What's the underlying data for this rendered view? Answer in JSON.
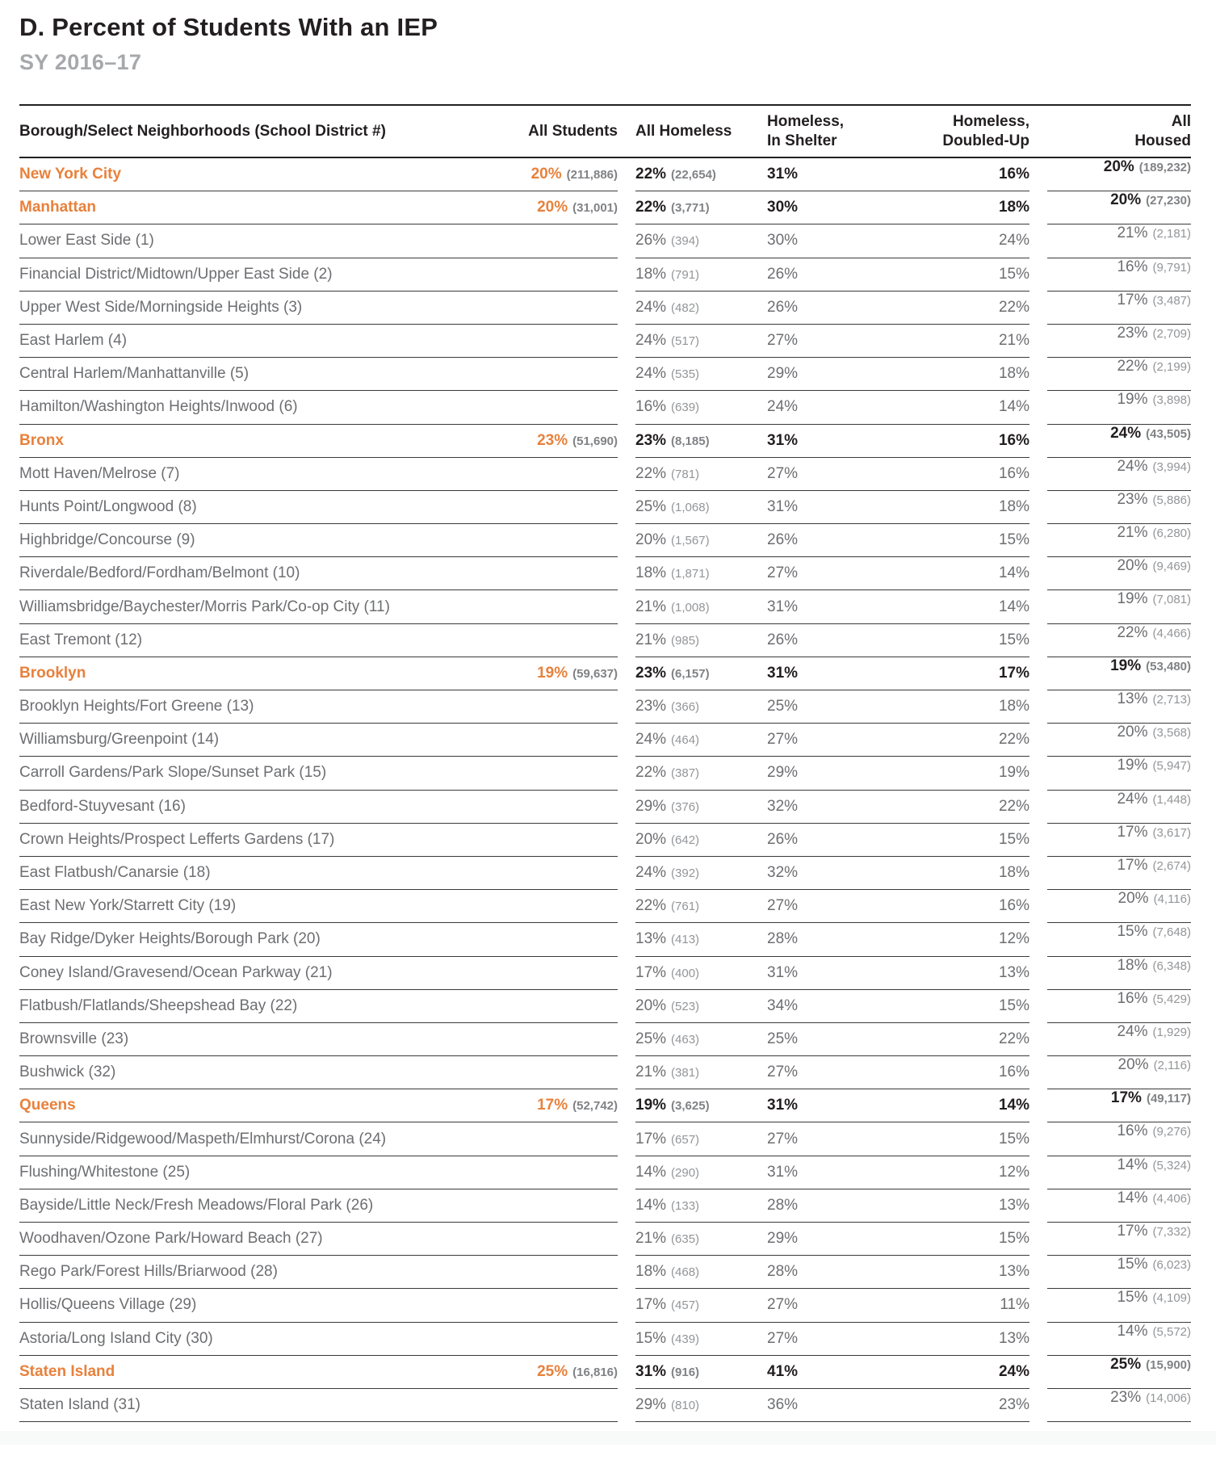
{
  "title": "D. Percent of Students With an IEP",
  "subtitle": "SY 2016–17",
  "accent_color": "#e8813c",
  "columns": {
    "name": "Borough/Select Neighborhoods (School District #)",
    "all_students": "All Students",
    "all_homeless": "All Homeless",
    "homeless_in_shelter": "Homeless,\nIn Shelter",
    "homeless_doubled_up": "Homeless,\nDoubled-Up",
    "all_housed": "All\nHoused"
  },
  "rows": [
    {
      "name": "New York City",
      "type": "city",
      "students_pct": "20%",
      "students_n": "(211,886)",
      "homeless_pct": "22%",
      "homeless_n": "(22,654)",
      "shelter_pct": "31%",
      "doubled_pct": "16%",
      "housed_pct": "20%",
      "housed_n": "(189,232)"
    },
    {
      "name": "Manhattan",
      "type": "borough",
      "students_pct": "20%",
      "students_n": "(31,001)",
      "homeless_pct": "22%",
      "homeless_n": "(3,771)",
      "shelter_pct": "30%",
      "doubled_pct": "18%",
      "housed_pct": "20%",
      "housed_n": "(27,230)"
    },
    {
      "name": "Lower East Side (1)",
      "type": "district",
      "students_pct": "",
      "students_n": "",
      "homeless_pct": "26%",
      "homeless_n": "(394)",
      "shelter_pct": "30%",
      "doubled_pct": "24%",
      "housed_pct": "21%",
      "housed_n": "(2,181)"
    },
    {
      "name": "Financial District/Midtown/Upper East Side (2)",
      "type": "district",
      "students_pct": "",
      "students_n": "",
      "homeless_pct": "18%",
      "homeless_n": "(791)",
      "shelter_pct": "26%",
      "doubled_pct": "15%",
      "housed_pct": "16%",
      "housed_n": "(9,791)"
    },
    {
      "name": "Upper West Side/Morningside Heights (3)",
      "type": "district",
      "students_pct": "",
      "students_n": "",
      "homeless_pct": "24%",
      "homeless_n": "(482)",
      "shelter_pct": "26%",
      "doubled_pct": "22%",
      "housed_pct": "17%",
      "housed_n": "(3,487)"
    },
    {
      "name": "East Harlem (4)",
      "type": "district",
      "students_pct": "",
      "students_n": "",
      "homeless_pct": "24%",
      "homeless_n": "(517)",
      "shelter_pct": "27%",
      "doubled_pct": "21%",
      "housed_pct": "23%",
      "housed_n": "(2,709)"
    },
    {
      "name": "Central Harlem/Manhattanville (5)",
      "type": "district",
      "students_pct": "",
      "students_n": "",
      "homeless_pct": "24%",
      "homeless_n": "(535)",
      "shelter_pct": "29%",
      "doubled_pct": "18%",
      "housed_pct": "22%",
      "housed_n": "(2,199)"
    },
    {
      "name": "Hamilton/Washington Heights/Inwood (6)",
      "type": "district",
      "students_pct": "",
      "students_n": "",
      "homeless_pct": "16%",
      "homeless_n": "(639)",
      "shelter_pct": "24%",
      "doubled_pct": "14%",
      "housed_pct": "19%",
      "housed_n": "(3,898)"
    },
    {
      "name": "Bronx",
      "type": "borough",
      "students_pct": "23%",
      "students_n": "(51,690)",
      "homeless_pct": "23%",
      "homeless_n": "(8,185)",
      "shelter_pct": "31%",
      "doubled_pct": "16%",
      "housed_pct": "24%",
      "housed_n": "(43,505)"
    },
    {
      "name": "Mott Haven/Melrose (7)",
      "type": "district",
      "students_pct": "",
      "students_n": "",
      "homeless_pct": "22%",
      "homeless_n": "(781)",
      "shelter_pct": "27%",
      "doubled_pct": "16%",
      "housed_pct": "24%",
      "housed_n": "(3,994)"
    },
    {
      "name": "Hunts Point/Longwood (8)",
      "type": "district",
      "students_pct": "",
      "students_n": "",
      "homeless_pct": "25%",
      "homeless_n": "(1,068)",
      "shelter_pct": "31%",
      "doubled_pct": "18%",
      "housed_pct": "23%",
      "housed_n": "(5,886)"
    },
    {
      "name": "Highbridge/Concourse (9)",
      "type": "district",
      "students_pct": "",
      "students_n": "",
      "homeless_pct": "20%",
      "homeless_n": "(1,567)",
      "shelter_pct": "26%",
      "doubled_pct": "15%",
      "housed_pct": "21%",
      "housed_n": "(6,280)"
    },
    {
      "name": "Riverdale/Bedford/Fordham/Belmont (10)",
      "type": "district",
      "students_pct": "",
      "students_n": "",
      "homeless_pct": "18%",
      "homeless_n": "(1,871)",
      "shelter_pct": "27%",
      "doubled_pct": "14%",
      "housed_pct": "20%",
      "housed_n": "(9,469)"
    },
    {
      "name": "Williamsbridge/Baychester/Morris Park/Co-op City (11)",
      "type": "district",
      "students_pct": "",
      "students_n": "",
      "homeless_pct": "21%",
      "homeless_n": "(1,008)",
      "shelter_pct": "31%",
      "doubled_pct": "14%",
      "housed_pct": "19%",
      "housed_n": "(7,081)"
    },
    {
      "name": "East Tremont (12)",
      "type": "district",
      "students_pct": "",
      "students_n": "",
      "homeless_pct": "21%",
      "homeless_n": "(985)",
      "shelter_pct": "26%",
      "doubled_pct": "15%",
      "housed_pct": "22%",
      "housed_n": "(4,466)"
    },
    {
      "name": "Brooklyn",
      "type": "borough",
      "students_pct": "19%",
      "students_n": "(59,637)",
      "homeless_pct": "23%",
      "homeless_n": "(6,157)",
      "shelter_pct": "31%",
      "doubled_pct": "17%",
      "housed_pct": "19%",
      "housed_n": "(53,480)"
    },
    {
      "name": "Brooklyn Heights/Fort Greene (13)",
      "type": "district",
      "students_pct": "",
      "students_n": "",
      "homeless_pct": "23%",
      "homeless_n": "(366)",
      "shelter_pct": "25%",
      "doubled_pct": "18%",
      "housed_pct": "13%",
      "housed_n": "(2,713)"
    },
    {
      "name": "Williamsburg/Greenpoint (14)",
      "type": "district",
      "students_pct": "",
      "students_n": "",
      "homeless_pct": "24%",
      "homeless_n": "(464)",
      "shelter_pct": "27%",
      "doubled_pct": "22%",
      "housed_pct": "20%",
      "housed_n": "(3,568)"
    },
    {
      "name": "Carroll Gardens/Park Slope/Sunset Park (15)",
      "type": "district",
      "students_pct": "",
      "students_n": "",
      "homeless_pct": "22%",
      "homeless_n": "(387)",
      "shelter_pct": "29%",
      "doubled_pct": "19%",
      "housed_pct": "19%",
      "housed_n": "(5,947)"
    },
    {
      "name": "Bedford-Stuyvesant (16)",
      "type": "district",
      "students_pct": "",
      "students_n": "",
      "homeless_pct": "29%",
      "homeless_n": "(376)",
      "shelter_pct": "32%",
      "doubled_pct": "22%",
      "housed_pct": "24%",
      "housed_n": "(1,448)"
    },
    {
      "name": "Crown Heights/Prospect Lefferts Gardens (17)",
      "type": "district",
      "students_pct": "",
      "students_n": "",
      "homeless_pct": "20%",
      "homeless_n": "(642)",
      "shelter_pct": "26%",
      "doubled_pct": "15%",
      "housed_pct": "17%",
      "housed_n": "(3,617)"
    },
    {
      "name": "East Flatbush/Canarsie (18)",
      "type": "district",
      "students_pct": "",
      "students_n": "",
      "homeless_pct": "24%",
      "homeless_n": "(392)",
      "shelter_pct": "32%",
      "doubled_pct": "18%",
      "housed_pct": "17%",
      "housed_n": "(2,674)"
    },
    {
      "name": "East New York/Starrett City (19)",
      "type": "district",
      "students_pct": "",
      "students_n": "",
      "homeless_pct": "22%",
      "homeless_n": "(761)",
      "shelter_pct": "27%",
      "doubled_pct": "16%",
      "housed_pct": "20%",
      "housed_n": "(4,116)"
    },
    {
      "name": "Bay Ridge/Dyker Heights/Borough Park (20)",
      "type": "district",
      "students_pct": "",
      "students_n": "",
      "homeless_pct": "13%",
      "homeless_n": "(413)",
      "shelter_pct": "28%",
      "doubled_pct": "12%",
      "housed_pct": "15%",
      "housed_n": "(7,648)"
    },
    {
      "name": "Coney Island/Gravesend/Ocean Parkway (21)",
      "type": "district",
      "students_pct": "",
      "students_n": "",
      "homeless_pct": "17%",
      "homeless_n": "(400)",
      "shelter_pct": "31%",
      "doubled_pct": "13%",
      "housed_pct": "18%",
      "housed_n": "(6,348)"
    },
    {
      "name": "Flatbush/Flatlands/Sheepshead Bay (22)",
      "type": "district",
      "students_pct": "",
      "students_n": "",
      "homeless_pct": "20%",
      "homeless_n": "(523)",
      "shelter_pct": "34%",
      "doubled_pct": "15%",
      "housed_pct": "16%",
      "housed_n": "(5,429)"
    },
    {
      "name": "Brownsville (23)",
      "type": "district",
      "students_pct": "",
      "students_n": "",
      "homeless_pct": "25%",
      "homeless_n": "(463)",
      "shelter_pct": "25%",
      "doubled_pct": "22%",
      "housed_pct": "24%",
      "housed_n": "(1,929)"
    },
    {
      "name": "Bushwick (32)",
      "type": "district",
      "students_pct": "",
      "students_n": "",
      "homeless_pct": "21%",
      "homeless_n": "(381)",
      "shelter_pct": "27%",
      "doubled_pct": "16%",
      "housed_pct": "20%",
      "housed_n": "(2,116)"
    },
    {
      "name": "Queens",
      "type": "borough",
      "students_pct": "17%",
      "students_n": "(52,742)",
      "homeless_pct": "19%",
      "homeless_n": "(3,625)",
      "shelter_pct": "31%",
      "doubled_pct": "14%",
      "housed_pct": "17%",
      "housed_n": "(49,117)"
    },
    {
      "name": "Sunnyside/Ridgewood/Maspeth/Elmhurst/Corona (24)",
      "type": "district",
      "students_pct": "",
      "students_n": "",
      "homeless_pct": "17%",
      "homeless_n": "(657)",
      "shelter_pct": "27%",
      "doubled_pct": "15%",
      "housed_pct": "16%",
      "housed_n": "(9,276)"
    },
    {
      "name": "Flushing/Whitestone (25)",
      "type": "district",
      "students_pct": "",
      "students_n": "",
      "homeless_pct": "14%",
      "homeless_n": "(290)",
      "shelter_pct": "31%",
      "doubled_pct": "12%",
      "housed_pct": "14%",
      "housed_n": "(5,324)"
    },
    {
      "name": "Bayside/Little Neck/Fresh Meadows/Floral Park (26)",
      "type": "district",
      "students_pct": "",
      "students_n": "",
      "homeless_pct": "14%",
      "homeless_n": "(133)",
      "shelter_pct": "28%",
      "doubled_pct": "13%",
      "housed_pct": "14%",
      "housed_n": "(4,406)"
    },
    {
      "name": "Woodhaven/Ozone Park/Howard Beach (27)",
      "type": "district",
      "students_pct": "",
      "students_n": "",
      "homeless_pct": "21%",
      "homeless_n": "(635)",
      "shelter_pct": "29%",
      "doubled_pct": "15%",
      "housed_pct": "17%",
      "housed_n": "(7,332)"
    },
    {
      "name": "Rego Park/Forest Hills/Briarwood (28)",
      "type": "district",
      "students_pct": "",
      "students_n": "",
      "homeless_pct": "18%",
      "homeless_n": "(468)",
      "shelter_pct": "28%",
      "doubled_pct": "13%",
      "housed_pct": "15%",
      "housed_n": "(6,023)"
    },
    {
      "name": "Hollis/Queens Village (29)",
      "type": "district",
      "students_pct": "",
      "students_n": "",
      "homeless_pct": "17%",
      "homeless_n": "(457)",
      "shelter_pct": "27%",
      "doubled_pct": "11%",
      "housed_pct": "15%",
      "housed_n": "(4,109)"
    },
    {
      "name": "Astoria/Long Island City (30)",
      "type": "district",
      "students_pct": "",
      "students_n": "",
      "homeless_pct": "15%",
      "homeless_n": "(439)",
      "shelter_pct": "27%",
      "doubled_pct": "13%",
      "housed_pct": "14%",
      "housed_n": "(5,572)"
    },
    {
      "name": "Staten Island",
      "type": "borough",
      "students_pct": "25%",
      "students_n": "(16,816)",
      "homeless_pct": "31%",
      "homeless_n": "(916)",
      "shelter_pct": "41%",
      "doubled_pct": "24%",
      "housed_pct": "25%",
      "housed_n": "(15,900)"
    },
    {
      "name": "Staten Island (31)",
      "type": "district",
      "students_pct": "",
      "students_n": "",
      "homeless_pct": "29%",
      "homeless_n": "(810)",
      "shelter_pct": "36%",
      "doubled_pct": "23%",
      "housed_pct": "23%",
      "housed_n": "(14,006)"
    }
  ]
}
